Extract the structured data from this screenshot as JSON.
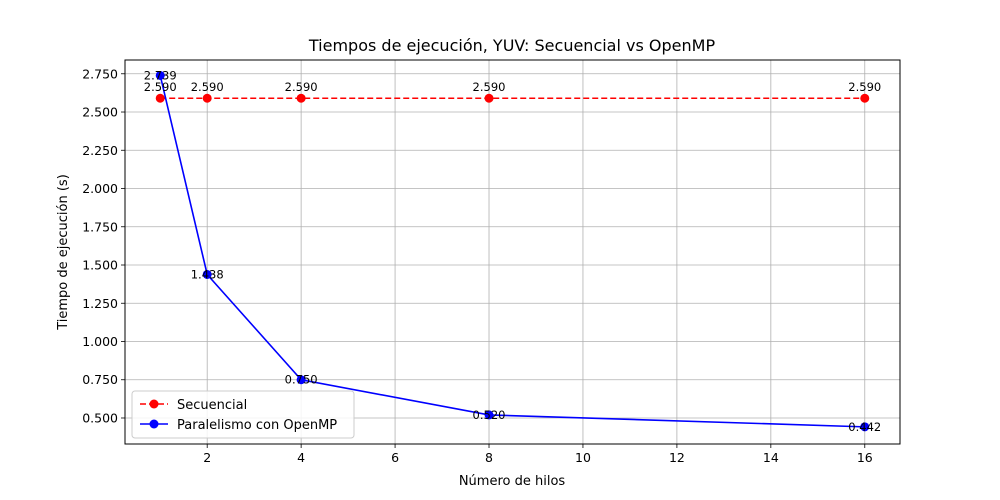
{
  "chart_data": {
    "type": "line",
    "title": "Tiempos de ejecución, YUV: Secuencial vs OpenMP",
    "xlabel": "Número de hilos",
    "ylabel": "Tiempo de ejecución (s)",
    "x": [
      1,
      2,
      4,
      8,
      16
    ],
    "xlim": [
      0.25,
      16.75
    ],
    "ylim": [
      0.33,
      2.84
    ],
    "xticks": [
      2,
      4,
      6,
      8,
      10,
      12,
      14,
      16
    ],
    "yticks": [
      0.5,
      0.75,
      1.0,
      1.25,
      1.5,
      1.75,
      2.0,
      2.25,
      2.5,
      2.75
    ],
    "ytick_labels": [
      "0.500",
      "0.750",
      "1.000",
      "1.250",
      "1.500",
      "1.750",
      "2.000",
      "2.250",
      "2.500",
      "2.750"
    ],
    "grid": true,
    "legend_position": "lower-left",
    "series": [
      {
        "name": "Secuencial",
        "values": [
          2.59,
          2.59,
          2.59,
          2.59,
          2.59
        ],
        "labels": [
          "2.590",
          "2.590",
          "2.590",
          "2.590",
          "2.590"
        ],
        "color": "#ff0000",
        "style": "dashed",
        "marker": "circle"
      },
      {
        "name": "Paralelismo con OpenMP",
        "values": [
          2.739,
          1.438,
          0.75,
          0.52,
          0.442
        ],
        "labels": [
          "2.739",
          "1.438",
          "0.750",
          "0.520",
          "0.442"
        ],
        "color": "#0000ff",
        "style": "solid",
        "marker": "circle"
      }
    ]
  }
}
